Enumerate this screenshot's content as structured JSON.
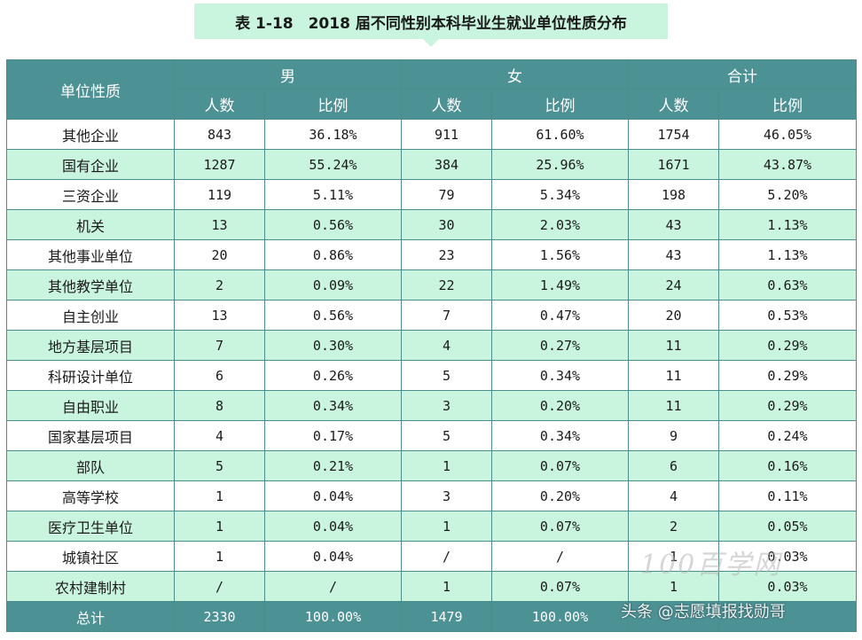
{
  "title": "表 1-18　2018 届不同性别本科毕业生就业单位性质分布",
  "header": {
    "category": "单位性质",
    "groups": [
      "男",
      "女",
      "合计"
    ],
    "count_label": "人数",
    "ratio_label": "比例"
  },
  "rows": [
    {
      "name": "其他企业",
      "male_n": "843",
      "male_p": "36.18%",
      "female_n": "911",
      "female_p": "61.60%",
      "total_n": "1754",
      "total_p": "46.05%"
    },
    {
      "name": "国有企业",
      "male_n": "1287",
      "male_p": "55.24%",
      "female_n": "384",
      "female_p": "25.96%",
      "total_n": "1671",
      "total_p": "43.87%"
    },
    {
      "name": "三资企业",
      "male_n": "119",
      "male_p": "5.11%",
      "female_n": "79",
      "female_p": "5.34%",
      "total_n": "198",
      "total_p": "5.20%"
    },
    {
      "name": "机关",
      "male_n": "13",
      "male_p": "0.56%",
      "female_n": "30",
      "female_p": "2.03%",
      "total_n": "43",
      "total_p": "1.13%"
    },
    {
      "name": "其他事业单位",
      "male_n": "20",
      "male_p": "0.86%",
      "female_n": "23",
      "female_p": "1.56%",
      "total_n": "43",
      "total_p": "1.13%"
    },
    {
      "name": "其他教学单位",
      "male_n": "2",
      "male_p": "0.09%",
      "female_n": "22",
      "female_p": "1.49%",
      "total_n": "24",
      "total_p": "0.63%"
    },
    {
      "name": "自主创业",
      "male_n": "13",
      "male_p": "0.56%",
      "female_n": "7",
      "female_p": "0.47%",
      "total_n": "20",
      "total_p": "0.53%"
    },
    {
      "name": "地方基层项目",
      "male_n": "7",
      "male_p": "0.30%",
      "female_n": "4",
      "female_p": "0.27%",
      "total_n": "11",
      "total_p": "0.29%"
    },
    {
      "name": "科研设计单位",
      "male_n": "6",
      "male_p": "0.26%",
      "female_n": "5",
      "female_p": "0.34%",
      "total_n": "11",
      "total_p": "0.29%"
    },
    {
      "name": "自由职业",
      "male_n": "8",
      "male_p": "0.34%",
      "female_n": "3",
      "female_p": "0.20%",
      "total_n": "11",
      "total_p": "0.29%"
    },
    {
      "name": "国家基层项目",
      "male_n": "4",
      "male_p": "0.17%",
      "female_n": "5",
      "female_p": "0.34%",
      "total_n": "9",
      "total_p": "0.24%"
    },
    {
      "name": "部队",
      "male_n": "5",
      "male_p": "0.21%",
      "female_n": "1",
      "female_p": "0.07%",
      "total_n": "6",
      "total_p": "0.16%"
    },
    {
      "name": "高等学校",
      "male_n": "1",
      "male_p": "0.04%",
      "female_n": "3",
      "female_p": "0.20%",
      "total_n": "4",
      "total_p": "0.11%"
    },
    {
      "name": "医疗卫生单位",
      "male_n": "1",
      "male_p": "0.04%",
      "female_n": "1",
      "female_p": "0.07%",
      "total_n": "2",
      "total_p": "0.05%"
    },
    {
      "name": "城镇社区",
      "male_n": "1",
      "male_p": "0.04%",
      "female_n": "/",
      "female_p": "/",
      "total_n": "1",
      "total_p": "0.03%"
    },
    {
      "name": "农村建制村",
      "male_n": "/",
      "male_p": "/",
      "female_n": "1",
      "female_p": "0.07%",
      "total_n": "1",
      "total_p": "0.03%"
    }
  ],
  "total": {
    "name": "总计",
    "male_n": "2330",
    "male_p": "100.00%",
    "female_n": "1479",
    "female_p": "100.00%"
  },
  "watermark": {
    "logo": "100百学网",
    "text": "头条 @志愿填报找勋哥"
  },
  "colors": {
    "header_bg": "#4c9194",
    "stripe_bg": "#c9f5de",
    "title_bg": "#c9f5de",
    "border": "#4b8c8d"
  }
}
